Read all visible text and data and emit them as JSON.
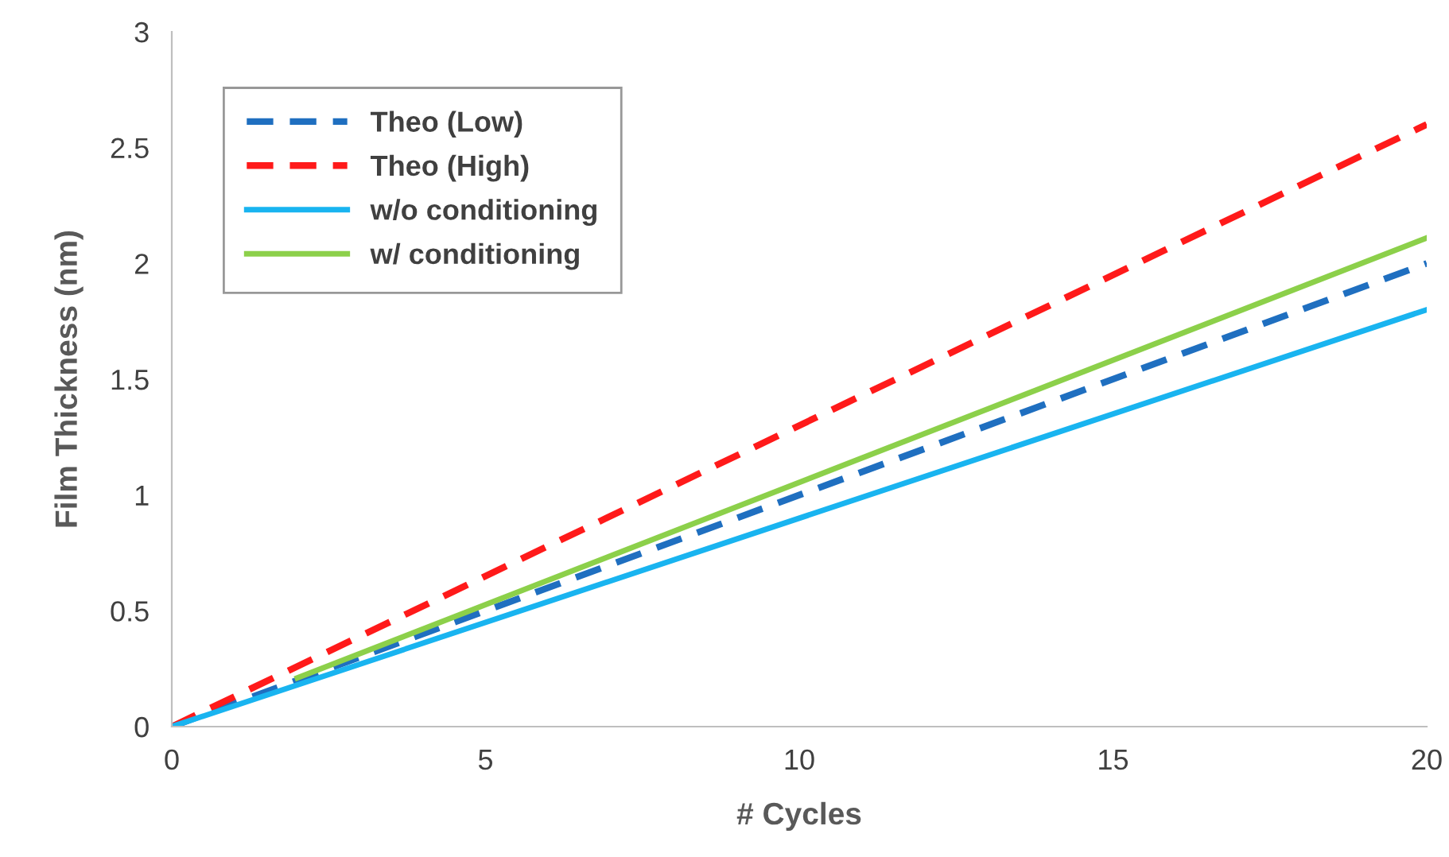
{
  "chart_data": {
    "type": "line",
    "xlabel": "# Cycles",
    "ylabel": "Film Thickness (nm)",
    "xlim": [
      0,
      20
    ],
    "xticks": [
      0,
      5,
      10,
      15,
      20
    ],
    "ylim": [
      0,
      3
    ],
    "yticks": [
      0,
      0.5,
      1,
      1.5,
      2,
      2.5,
      3
    ],
    "grid": false,
    "legend": "top left",
    "marker": "none",
    "series": [
      {
        "name": "Theo (Low)",
        "color": "#1f6fc0",
        "line_style": "dashed",
        "x": [
          0,
          20
        ],
        "values": [
          0,
          2.0
        ]
      },
      {
        "name": "Theo (High)",
        "color": "#ff1a1a",
        "line_style": "dashed",
        "x": [
          0,
          20
        ],
        "values": [
          0,
          2.6
        ]
      },
      {
        "name": "w/o conditioning",
        "color": "#19b4f0",
        "line_style": "solid",
        "x": [
          0,
          20
        ],
        "values": [
          0,
          1.8
        ]
      },
      {
        "name": "w/ conditioning",
        "color": "#8cd04a",
        "line_style": "solid",
        "x": [
          2,
          20
        ],
        "values": [
          0.21,
          2.11
        ]
      }
    ]
  }
}
